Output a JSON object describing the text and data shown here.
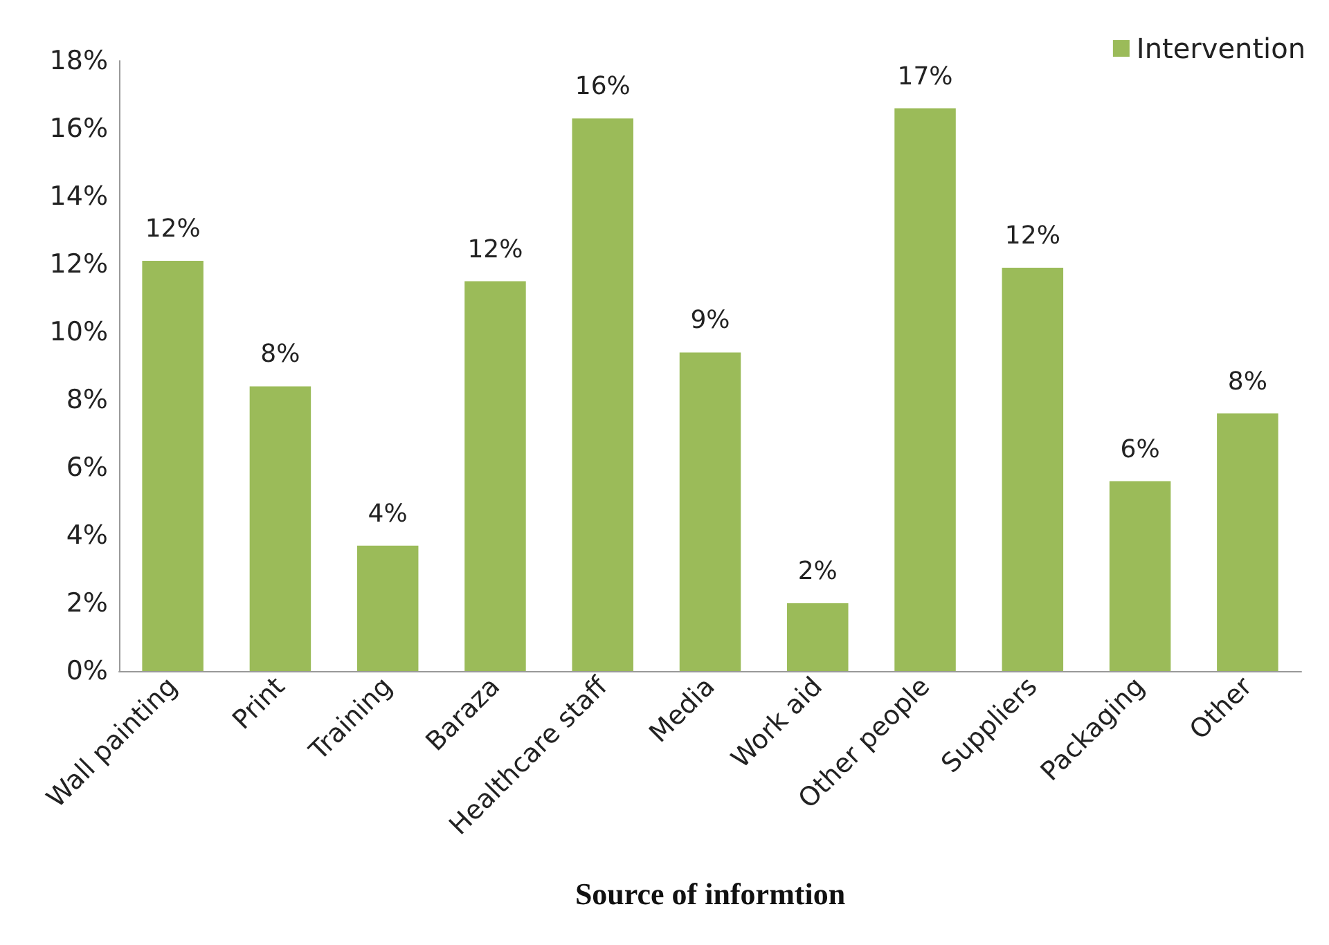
{
  "chart_data": {
    "type": "bar",
    "xlabel": "Source of informtion",
    "categories": [
      "Wall painting",
      "Print",
      "Training",
      "Baraza",
      "Healthcare staff",
      "Media",
      "Work aid",
      "Other people",
      "Suppliers",
      "Packaging",
      "Other"
    ],
    "series": [
      {
        "name": "Intervention",
        "color": "#9bbb59",
        "values": [
          12.1,
          8.4,
          3.7,
          11.5,
          16.3,
          9.4,
          2.0,
          16.6,
          11.9,
          5.6,
          7.6
        ],
        "value_labels": [
          "12%",
          "8%",
          "4%",
          "12%",
          "16%",
          "9%",
          "2%",
          "17%",
          "12%",
          "6%",
          "8%"
        ]
      }
    ],
    "ylim": [
      0,
      18
    ],
    "yticks": [
      {
        "value": 0,
        "label": "0%"
      },
      {
        "value": 2,
        "label": "2%"
      },
      {
        "value": 4,
        "label": "4%"
      },
      {
        "value": 6,
        "label": "6%"
      },
      {
        "value": 8,
        "label": "8%"
      },
      {
        "value": 10,
        "label": "10%"
      },
      {
        "value": 12,
        "label": "12%"
      },
      {
        "value": 14,
        "label": "14%"
      },
      {
        "value": 16,
        "label": "16%"
      },
      {
        "value": 18,
        "label": "18%"
      }
    ],
    "grid": false,
    "legend": "top right"
  }
}
